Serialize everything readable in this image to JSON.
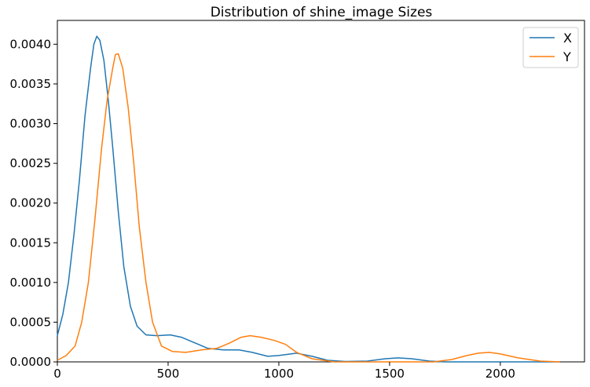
{
  "chart_data": {
    "type": "line",
    "title": "Distribution of shine_image Sizes",
    "xlabel": "",
    "ylabel": "",
    "xlim": [
      0,
      2380
    ],
    "ylim": [
      0,
      0.0043
    ],
    "x_ticks": [
      0,
      500,
      1000,
      1500,
      2000
    ],
    "x_tick_labels": [
      "0",
      "500",
      "1000",
      "1500",
      "2000"
    ],
    "y_ticks": [
      0,
      0.0005,
      0.001,
      0.0015,
      0.002,
      0.0025,
      0.003,
      0.0035,
      0.004
    ],
    "y_tick_labels": [
      "0.0000",
      "0.0005",
      "0.0010",
      "0.0015",
      "0.0020",
      "0.0025",
      "0.0030",
      "0.0035",
      "0.0040"
    ],
    "grid": false,
    "legend_position": "top-right",
    "series": [
      {
        "name": "X",
        "color": "#1f77b4",
        "points": [
          [
            0,
            0.00033
          ],
          [
            25,
            0.0006
          ],
          [
            50,
            0.001
          ],
          [
            75,
            0.0016
          ],
          [
            100,
            0.0023
          ],
          [
            125,
            0.0031
          ],
          [
            150,
            0.0037
          ],
          [
            165,
            0.004
          ],
          [
            178,
            0.0041
          ],
          [
            192,
            0.00405
          ],
          [
            210,
            0.0038
          ],
          [
            230,
            0.0033
          ],
          [
            250,
            0.0027
          ],
          [
            275,
            0.0019
          ],
          [
            300,
            0.0012
          ],
          [
            330,
            0.0007
          ],
          [
            360,
            0.00045
          ],
          [
            400,
            0.00034
          ],
          [
            450,
            0.00033
          ],
          [
            510,
            0.00034
          ],
          [
            560,
            0.00031
          ],
          [
            620,
            0.00024
          ],
          [
            680,
            0.00017
          ],
          [
            750,
            0.00015
          ],
          [
            820,
            0.00015
          ],
          [
            880,
            0.00012
          ],
          [
            950,
            7e-05
          ],
          [
            1000,
            8e-05
          ],
          [
            1080,
            0.00011
          ],
          [
            1150,
            7e-05
          ],
          [
            1220,
            2e-05
          ],
          [
            1300,
            5e-06
          ],
          [
            1400,
            1e-05
          ],
          [
            1480,
            4e-05
          ],
          [
            1540,
            5e-05
          ],
          [
            1600,
            4e-05
          ],
          [
            1680,
            1e-05
          ],
          [
            1750,
            0.0
          ],
          [
            1850,
            0.0
          ],
          [
            2000,
            0.0
          ],
          [
            2150,
            0.0
          ],
          [
            2270,
            0.0
          ]
        ]
      },
      {
        "name": "Y",
        "color": "#ff7f0e",
        "points": [
          [
            0,
            2e-05
          ],
          [
            40,
            8e-05
          ],
          [
            80,
            0.0002
          ],
          [
            110,
            0.0005
          ],
          [
            140,
            0.001
          ],
          [
            170,
            0.0018
          ],
          [
            200,
            0.0027
          ],
          [
            225,
            0.0033
          ],
          [
            250,
            0.0037
          ],
          [
            262,
            0.00387
          ],
          [
            275,
            0.00388
          ],
          [
            295,
            0.0037
          ],
          [
            320,
            0.0032
          ],
          [
            345,
            0.0025
          ],
          [
            370,
            0.0017
          ],
          [
            400,
            0.001
          ],
          [
            430,
            0.0005
          ],
          [
            470,
            0.0002
          ],
          [
            520,
            0.00013
          ],
          [
            580,
            0.00012
          ],
          [
            650,
            0.00015
          ],
          [
            720,
            0.00017
          ],
          [
            780,
            0.00024
          ],
          [
            830,
            0.00031
          ],
          [
            870,
            0.00033
          ],
          [
            920,
            0.00031
          ],
          [
            980,
            0.00027
          ],
          [
            1030,
            0.00022
          ],
          [
            1080,
            0.00012
          ],
          [
            1150,
            4e-05
          ],
          [
            1250,
            0.0
          ],
          [
            1400,
            0.0
          ],
          [
            1550,
            0.0
          ],
          [
            1700,
            0.0
          ],
          [
            1780,
            3e-05
          ],
          [
            1850,
            8e-05
          ],
          [
            1900,
            0.00011
          ],
          [
            1950,
            0.00012
          ],
          [
            2000,
            0.0001
          ],
          [
            2080,
            5e-05
          ],
          [
            2180,
            1e-05
          ],
          [
            2270,
            0.0
          ]
        ]
      }
    ]
  }
}
